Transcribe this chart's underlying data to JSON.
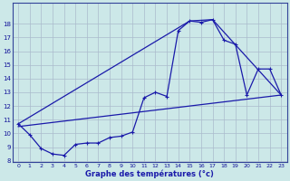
{
  "xlabel": "Graphe des températures (°c)",
  "bg_color": "#cce8e8",
  "grid_color": "#aabbcc",
  "line_color": "#1a1aaa",
  "ylim": [
    8,
    19
  ],
  "xlim": [
    -0.5,
    23.5
  ],
  "yticks": [
    8,
    9,
    10,
    11,
    12,
    13,
    14,
    15,
    16,
    17,
    18
  ],
  "xticks": [
    0,
    1,
    2,
    3,
    4,
    5,
    6,
    7,
    8,
    9,
    10,
    11,
    12,
    13,
    14,
    15,
    16,
    17,
    18,
    19,
    20,
    21,
    22,
    23
  ],
  "series1_x": [
    0,
    1,
    2,
    3,
    4,
    5,
    6,
    7,
    8,
    9,
    10,
    11,
    12,
    13,
    14,
    15,
    16,
    17,
    18,
    19,
    20,
    21,
    22,
    23
  ],
  "series1_y": [
    10.7,
    9.9,
    8.9,
    8.5,
    8.4,
    9.2,
    9.3,
    9.3,
    9.7,
    9.8,
    10.1,
    12.6,
    13.0,
    12.7,
    17.5,
    18.2,
    18.1,
    18.3,
    16.8,
    16.5,
    12.8,
    14.7,
    14.7,
    12.8
  ],
  "series2_x": [
    0,
    15,
    17,
    23
  ],
  "series2_y": [
    10.7,
    18.2,
    18.3,
    12.8
  ],
  "series3_x": [
    0,
    23
  ],
  "series3_y": [
    10.5,
    12.8
  ]
}
